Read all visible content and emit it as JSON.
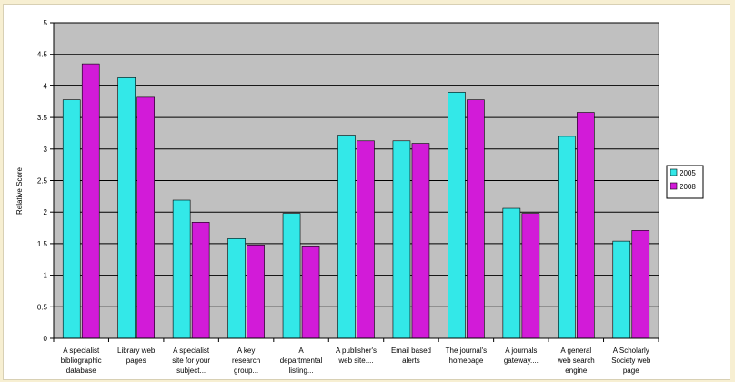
{
  "chart_data": {
    "type": "bar",
    "categories": [
      [
        "A specialist",
        "bibliographic",
        "database"
      ],
      [
        "Library web",
        "pages"
      ],
      [
        "A specialist",
        "site for your",
        "subject..."
      ],
      [
        "A key",
        "research",
        "group..."
      ],
      [
        "A",
        "departmental",
        "listing..."
      ],
      [
        "A publisher's",
        "web site...."
      ],
      [
        "Email based",
        "alerts"
      ],
      [
        "The journal's",
        "homepage"
      ],
      [
        "A journals",
        "gateway...."
      ],
      [
        "A general",
        "web search",
        "engine"
      ],
      [
        "A Scholarly",
        "Society web",
        "page"
      ]
    ],
    "series": [
      {
        "name": "2005",
        "color": "#33e8e8",
        "values": [
          3.78,
          4.13,
          2.19,
          1.58,
          1.98,
          3.22,
          3.13,
          3.9,
          2.06,
          3.2,
          1.54
        ]
      },
      {
        "name": "2008",
        "color": "#d21bd8",
        "values": [
          4.35,
          3.82,
          1.84,
          1.48,
          1.45,
          3.13,
          3.09,
          3.78,
          1.98,
          3.58,
          1.71
        ]
      }
    ],
    "ylabel": "Relative Score",
    "xlabel": "",
    "title": "",
    "ylim": [
      0,
      5
    ],
    "yticks": [
      "0",
      "0.5",
      "1",
      "1.5",
      "2",
      "2.5",
      "3",
      "3.5",
      "4",
      "4.5",
      "5"
    ],
    "grid": true,
    "legend": "right",
    "plot_background": "#c0c0c0"
  }
}
